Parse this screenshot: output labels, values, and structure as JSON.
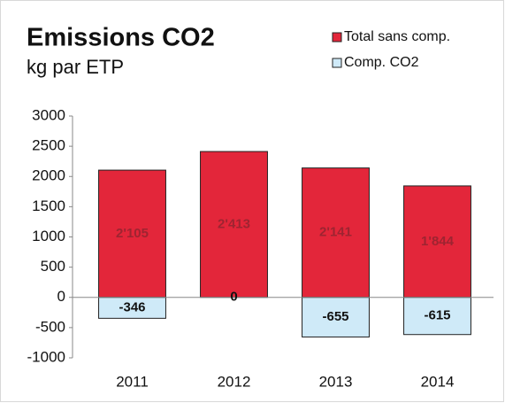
{
  "chart_data": {
    "type": "bar",
    "title": "Emissions CO2",
    "subtitle": "kg par ETP",
    "categories": [
      "2011",
      "2012",
      "2013",
      "2014"
    ],
    "series": [
      {
        "name": "Total sans comp.",
        "color": "#e3263a",
        "values": [
          2105,
          2413,
          2141,
          1844
        ],
        "value_labels": [
          "2'105",
          "2'413",
          "2'141",
          "1'844"
        ],
        "label_color": "#9e2431"
      },
      {
        "name": "Comp. CO2",
        "color": "#cfeaf8",
        "values": [
          -346,
          0,
          -655,
          -615
        ],
        "label_color": "#111111"
      }
    ],
    "ylim": [
      -1000,
      3000
    ],
    "yticks": [
      -1000,
      -500,
      0,
      500,
      1000,
      1500,
      2000,
      2500,
      3000
    ],
    "grid": false,
    "legend": "top-right"
  }
}
